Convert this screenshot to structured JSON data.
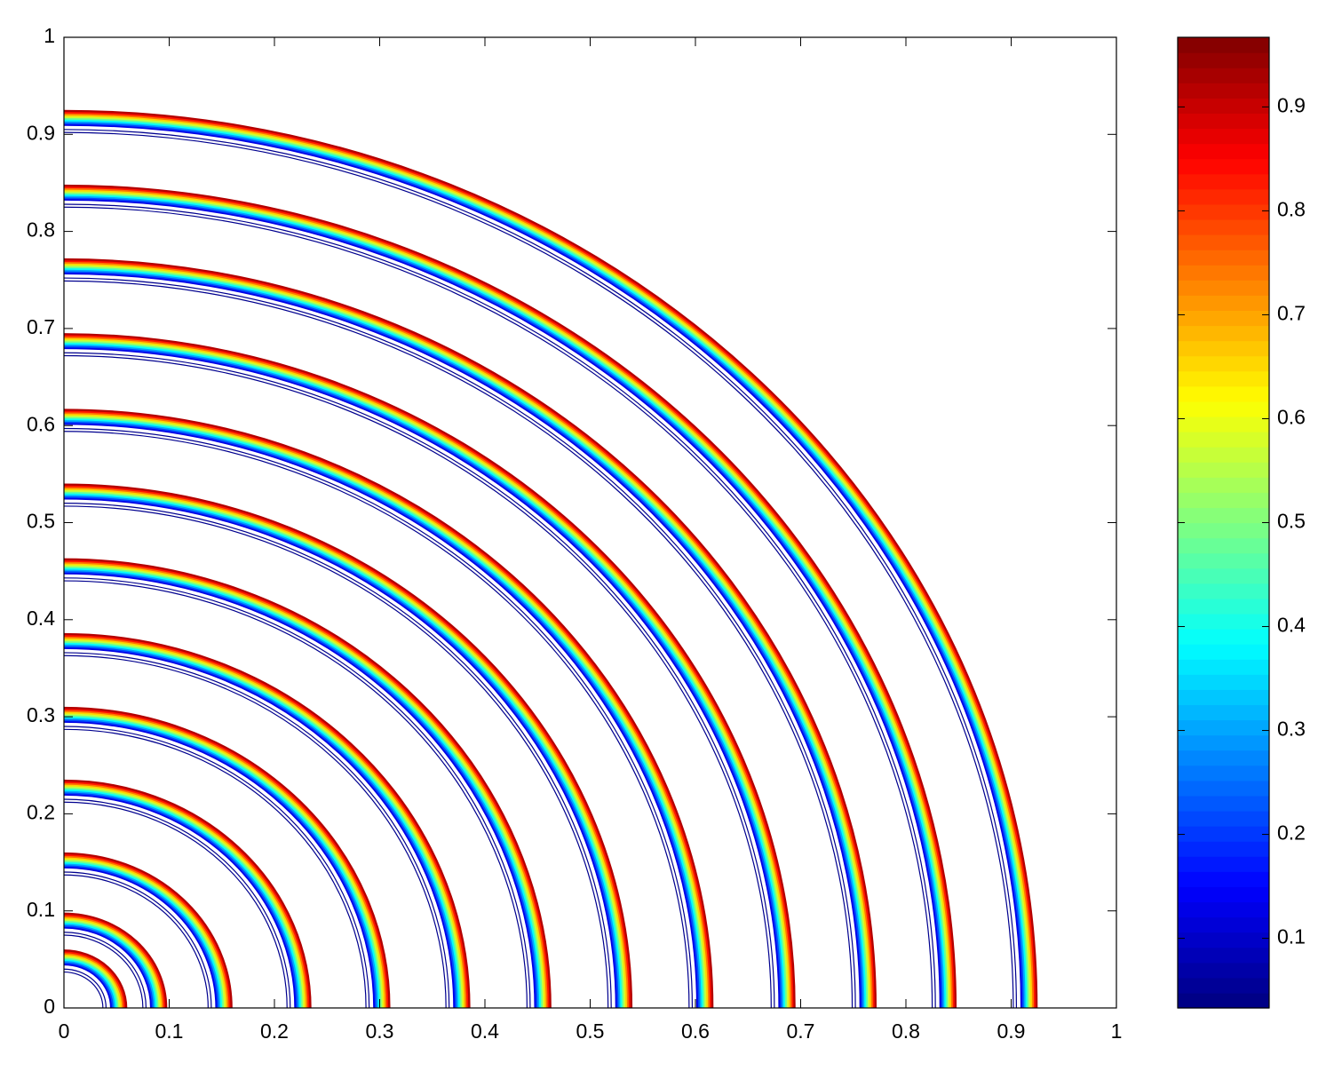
{
  "chart_data": {
    "type": "contour",
    "colormap": "jet",
    "fronts": [
      0.06,
      0.098,
      0.16,
      0.235,
      0.31,
      0.386,
      0.463,
      0.54,
      0.617,
      0.695,
      0.772,
      0.848,
      0.925
    ],
    "xlim": [
      0,
      1
    ],
    "ylim": [
      0,
      1
    ],
    "xticks": [
      0,
      0.1,
      0.2,
      0.3,
      0.4,
      0.5,
      0.6,
      0.7,
      0.8,
      0.9,
      1
    ],
    "yticks": [
      0,
      0.1,
      0.2,
      0.3,
      0.4,
      0.5,
      0.6,
      0.7,
      0.8,
      0.9,
      1
    ],
    "clim": [
      0.033,
      0.967
    ],
    "cticks": [
      0.1,
      0.2,
      0.3,
      0.4,
      0.5,
      0.6,
      0.7,
      0.8,
      0.9
    ]
  }
}
